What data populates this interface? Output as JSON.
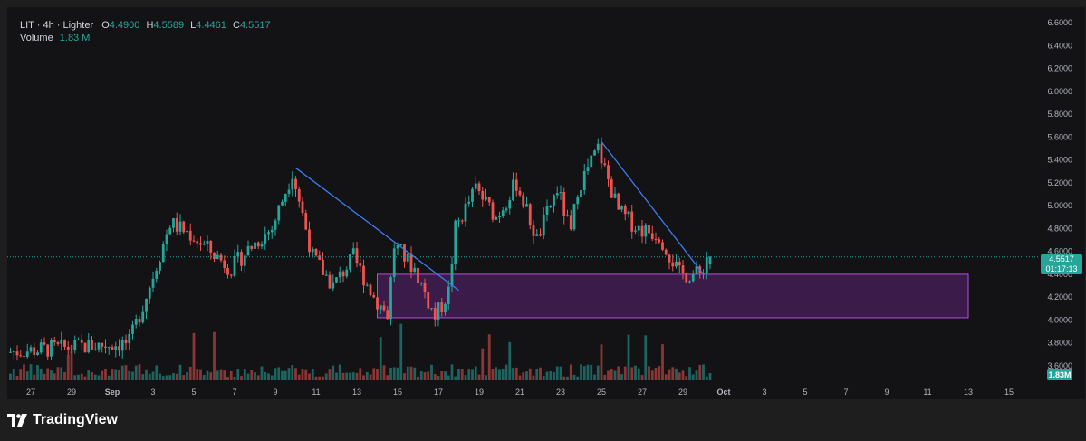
{
  "legend": {
    "symbol": "LIT · 4h · Lighter",
    "o_label": "O",
    "o_value": "4.4900",
    "h_label": "H",
    "h_value": "4.5589",
    "l_label": "L",
    "l_value": "4.4461",
    "c_label": "C",
    "c_value": "4.5517",
    "volume_label": "Volume",
    "volume_value": "1.83 M"
  },
  "price_tag": {
    "price": "4.5517",
    "countdown": "01:17:13"
  },
  "volume_tag": "1.83M",
  "brand": "TradingView",
  "colors": {
    "up": "#26a69a",
    "down": "#ef5350",
    "trendline": "#3d7cf2",
    "zone_border": "#b44fe0",
    "zone_fill": "#4a1f5c",
    "last_price": "#26a69a"
  },
  "chart_data": {
    "type": "candlestick",
    "title": "",
    "ylim": [
      3.57,
      6.7
    ],
    "y_ticks": [
      "6.6000",
      "6.4000",
      "6.2000",
      "6.0000",
      "5.8000",
      "5.6000",
      "5.4000",
      "5.2000",
      "5.0000",
      "4.8000",
      "4.6000",
      "4.4000",
      "4.2000",
      "4.0000",
      "3.8000",
      "3.6000"
    ],
    "x_tick_labels": [
      "27",
      "29",
      "Sep",
      "3",
      "5",
      "7",
      "9",
      "11",
      "13",
      "15",
      "17",
      "19",
      "21",
      "23",
      "25",
      "27",
      "29",
      "Oct",
      "3",
      "5",
      "7",
      "9",
      "11",
      "13",
      "15"
    ],
    "price_path": [
      [
        "2025-08-26",
        3.72
      ],
      [
        "2025-09-01",
        3.8
      ],
      [
        "2025-09-02",
        4.3
      ],
      [
        "2025-09-03",
        4.85
      ],
      [
        "2025-09-04",
        4.75
      ],
      [
        "2025-09-06",
        4.45
      ],
      [
        "2025-09-07",
        4.65
      ],
      [
        "2025-09-08",
        4.8
      ],
      [
        "2025-09-09",
        5.3
      ],
      [
        "2025-09-10",
        4.55
      ],
      [
        "2025-09-11",
        4.3
      ],
      [
        "2025-09-12",
        4.55
      ],
      [
        "2025-09-13",
        4.2
      ],
      [
        "2025-09-13T16:00",
        4.05
      ],
      [
        "2025-09-14",
        4.65
      ],
      [
        "2025-09-15",
        4.45
      ],
      [
        "2025-09-16",
        4.02
      ],
      [
        "2025-09-16T16:00",
        4.25
      ],
      [
        "2025-09-17",
        4.8
      ],
      [
        "2025-09-18",
        5.15
      ],
      [
        "2025-09-19",
        4.9
      ],
      [
        "2025-09-20",
        5.2
      ],
      [
        "2025-09-21",
        4.7
      ],
      [
        "2025-09-22",
        5.15
      ],
      [
        "2025-09-22T16:00",
        4.75
      ],
      [
        "2025-09-23",
        5.15
      ],
      [
        "2025-09-24",
        5.5
      ],
      [
        "2025-09-25",
        4.95
      ],
      [
        "2025-09-26",
        4.8
      ],
      [
        "2025-09-27",
        4.75
      ],
      [
        "2025-09-28",
        4.4
      ],
      [
        "2025-09-29",
        4.4
      ],
      [
        "2025-09-29T08:00",
        4.5517
      ]
    ],
    "last_candle": {
      "open": 4.49,
      "high": 4.5589,
      "low": 4.4461,
      "close": 4.5517
    },
    "volume_last": "1.83M",
    "trendlines": [
      {
        "from": [
          "2025-09-09",
          5.33
        ],
        "to": [
          "2025-09-17",
          4.26
        ]
      },
      {
        "from": [
          "2025-09-24",
          5.56
        ],
        "to": [
          "2025-09-29",
          4.4
        ]
      }
    ],
    "zones": [
      {
        "x_from": "2025-09-13",
        "x_to": "2025-10-12",
        "y_from": 4.02,
        "y_to": 4.4
      }
    ]
  }
}
